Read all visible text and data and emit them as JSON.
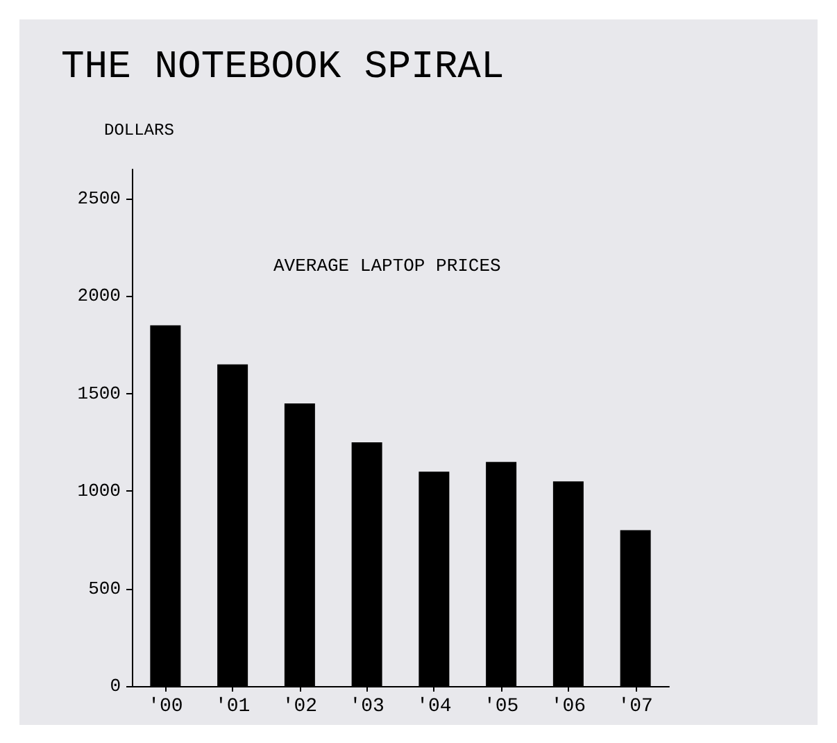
{
  "chart_data": {
    "type": "bar",
    "title": "THE NOTEBOOK SPIRAL",
    "subtitle": "AVERAGE LAPTOP PRICES",
    "ylabel": "DOLLARS",
    "categories": [
      "'00",
      "'01",
      "'02",
      "'03",
      "'04",
      "'05",
      "'06",
      "'07"
    ],
    "values": [
      1850,
      1650,
      1450,
      1250,
      1100,
      1150,
      1050,
      800
    ],
    "color": "#000000",
    "ylim": [
      0,
      2650
    ],
    "yticks": [
      0,
      500,
      1000,
      1500,
      2000,
      2500
    ],
    "grid": false
  }
}
